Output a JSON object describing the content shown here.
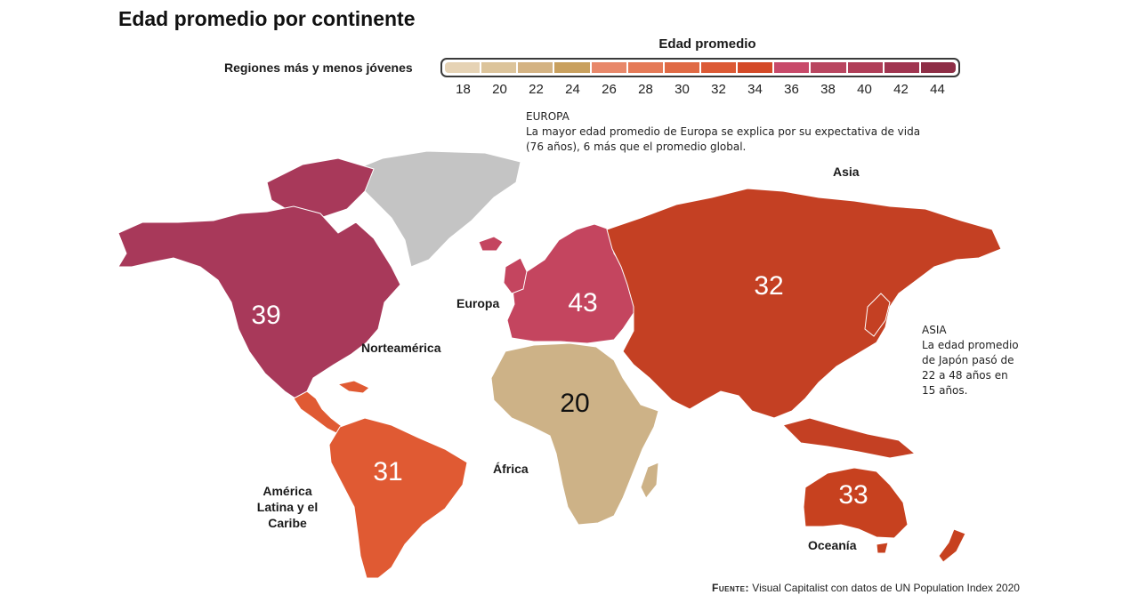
{
  "title": "Edad promedio por continente",
  "legend": {
    "title": "Edad promedio",
    "subtitle": "Regiones más y menos jóvenes",
    "ticks": [
      "18",
      "20",
      "22",
      "24",
      "26",
      "28",
      "30",
      "32",
      "34",
      "36",
      "38",
      "40",
      "42",
      "44"
    ],
    "colors": [
      "#e6d3b5",
      "#dcc49b",
      "#d4b383",
      "#c9a05e",
      "#e8886a",
      "#e57a57",
      "#e06a45",
      "#dc5a35",
      "#d44a28",
      "#c84a6a",
      "#b94660",
      "#b03e58",
      "#a03550",
      "#8e2e46"
    ]
  },
  "notes": {
    "europa_heading": "EUROPA",
    "europa_text_1": "La mayor edad promedio de Europa se explica por su expectativa de vida",
    "europa_text_2": "(76 años), 6 más que el promedio global.",
    "asia_heading": "ASIA",
    "asia_text_1": "La edad promedio",
    "asia_text_2": "de Japón pasó de",
    "asia_text_3": "22 a 48 años en",
    "asia_text_4": "15 años."
  },
  "regions": [
    {
      "name": "Norteamérica",
      "value": "39",
      "color": "#a8395a"
    },
    {
      "name": "América Latina y el Caribe",
      "line1": "América",
      "line2": "Latina y el",
      "line3": "Caribe",
      "value": "31",
      "color": "#e05a33"
    },
    {
      "name": "Europa",
      "value": "43",
      "color": "#c4455f"
    },
    {
      "name": "África",
      "value": "20",
      "color": "#cdb287"
    },
    {
      "name": "Asia",
      "value": "32",
      "color": "#c44023"
    },
    {
      "name": "Oceanía",
      "value": "33",
      "color": "#c7411f"
    }
  ],
  "greenland_color": "#c4c4c4",
  "source": {
    "label": "Fuente:",
    "text": "Visual Capitalist con datos de UN Population Index 2020"
  }
}
